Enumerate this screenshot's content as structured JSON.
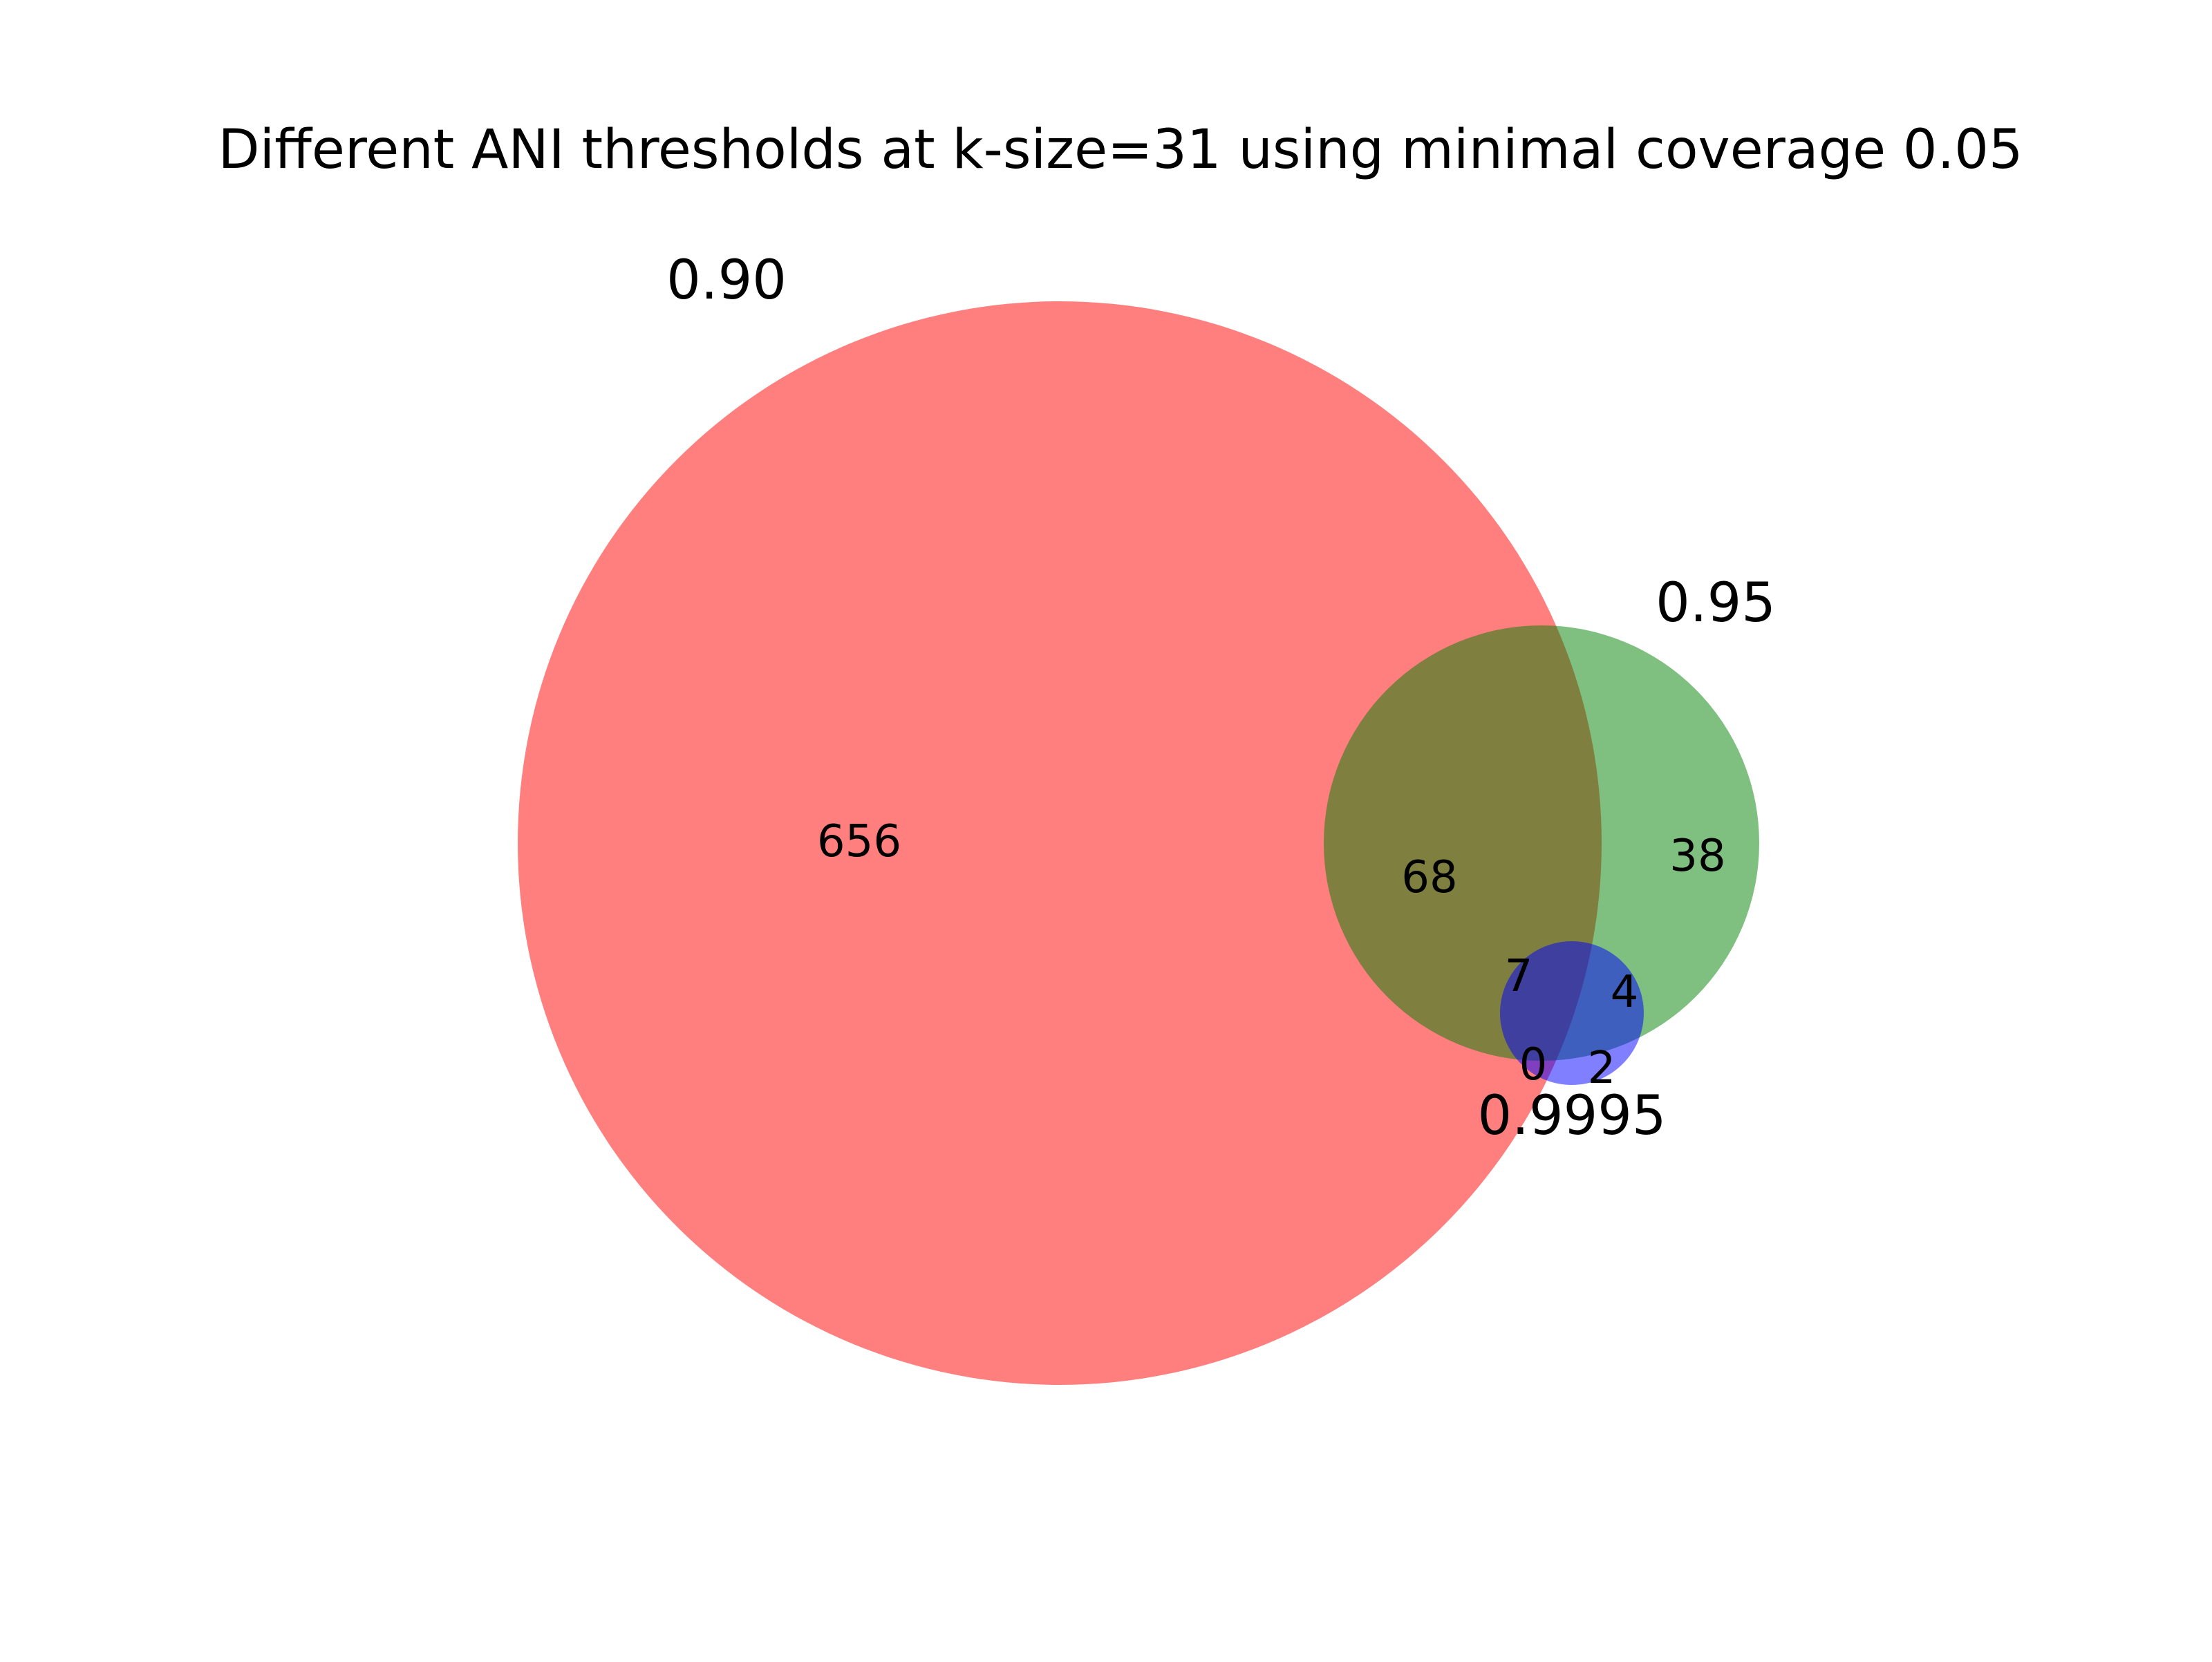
{
  "title": "Different ANI thresholds at k-size=31 using minimal coverage 0.05",
  "sets": [
    {
      "name": "0.90",
      "color": "#ff0000"
    },
    {
      "name": "0.95",
      "color": "#008000"
    },
    {
      "name": "0.9995",
      "color": "#0000ff"
    }
  ],
  "regions": {
    "only_0_90": "656",
    "only_0_95": "38",
    "only_0_9995": "2",
    "0_90_and_0_95": "68",
    "0_90_and_0_9995": "0",
    "0_95_and_0_9995": "4",
    "all_three": "7"
  },
  "fill_opacity": 0.5
}
